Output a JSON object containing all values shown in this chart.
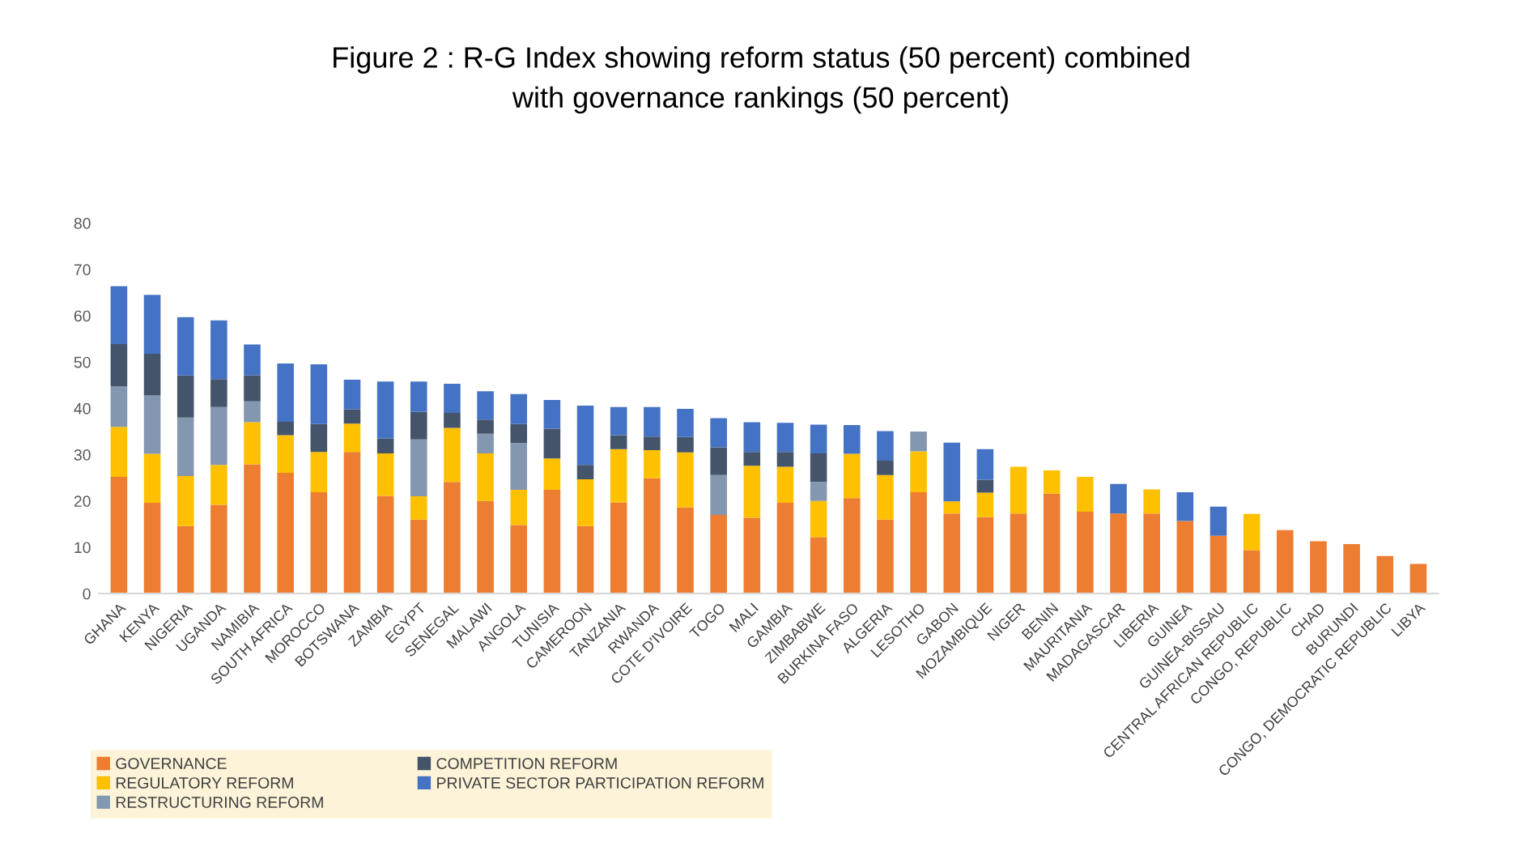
{
  "chart_data": {
    "type": "bar",
    "stacked": true,
    "title": "Figure 2 : R-G Index showing reform status (50 percent) combined\nwith governance rankings (50 percent)",
    "categories": [
      "GHANA",
      "KENYA",
      "NIGERIA",
      "UGANDA",
      "NAMIBIA",
      "SOUTH AFRICA",
      "MOROCCO",
      "BOTSWANA",
      "ZAMBIA",
      "EGYPT",
      "SENEGAL",
      "MALAWI",
      "ANGOLA",
      "TUNISIA",
      "CAMEROON",
      "TANZANIA",
      "RWANDA",
      "COTE D'IVOIRE",
      "TOGO",
      "MALI",
      "GAMBIA",
      "ZIMBABWE",
      "BURKINA FASO",
      "ALGERIA",
      "LESOTHO",
      "GABON",
      "MOZAMBIQUE",
      "NIGER",
      "BENIN",
      "MAURITANIA",
      "MADAGASCAR",
      "LIBERIA",
      "GUINEA",
      "GUINEA-BISSAU",
      "CENTRAL AFRICAN REPUBLIC",
      "CONGO, REPUBLIC",
      "CHAD",
      "BURUNDI",
      "CONGO, DEMOCRATIC REPUBLIC",
      "LIBYA"
    ],
    "series": [
      {
        "name": "GOVERNANCE",
        "color": "#ed7d31",
        "values": [
          25.2,
          19.6,
          14.6,
          19.2,
          27.9,
          26.1,
          21.9,
          30.6,
          21.1,
          16.0,
          24.1,
          20.0,
          14.8,
          22.4,
          14.6,
          19.7,
          24.9,
          18.6,
          17.0,
          16.4,
          19.6,
          12.2,
          20.6,
          16.0,
          21.9,
          17.3,
          16.5,
          17.3,
          21.6,
          17.7,
          17.3,
          17.3,
          15.7,
          12.5,
          9.4,
          13.7,
          11.3,
          10.7,
          8.1,
          6.4
        ]
      },
      {
        "name": "REGULATORY REFORM",
        "color": "#ffc000",
        "values": [
          10.8,
          10.6,
          10.8,
          8.6,
          9.1,
          8.1,
          8.7,
          6.1,
          9.2,
          5.0,
          11.7,
          10.3,
          7.6,
          6.8,
          10.1,
          11.5,
          6.1,
          11.9,
          null,
          11.2,
          7.8,
          7.8,
          9.6,
          9.6,
          8.8,
          2.6,
          5.3,
          10.1,
          5.0,
          7.5,
          null,
          5.2,
          null,
          null,
          7.8,
          null,
          null,
          null,
          null,
          null
        ]
      },
      {
        "name": "RESTRUCTURING REFORM",
        "color": "#8497b0",
        "values": [
          8.8,
          12.6,
          12.6,
          12.5,
          4.5,
          null,
          null,
          null,
          null,
          12.3,
          null,
          4.2,
          10.1,
          null,
          null,
          null,
          null,
          null,
          8.6,
          null,
          null,
          4.1,
          null,
          null,
          4.3,
          null,
          null,
          null,
          null,
          null,
          null,
          null,
          null,
          null,
          null,
          null,
          null,
          null,
          null,
          null
        ]
      },
      {
        "name": "COMPETITION REFORM",
        "color": "#44546a",
        "values": [
          9.1,
          9.0,
          9.1,
          6.0,
          5.6,
          2.9,
          6.0,
          3.1,
          3.2,
          6.0,
          3.2,
          3.1,
          4.1,
          6.4,
          3.1,
          3.0,
          2.9,
          3.3,
          6.0,
          3.0,
          3.2,
          6.2,
          null,
          3.1,
          null,
          null,
          2.8,
          null,
          null,
          null,
          null,
          null,
          null,
          null,
          null,
          null,
          null,
          null,
          null,
          null
        ]
      },
      {
        "name": "PRIVATE SECTOR PARTICIPATION REFORM",
        "color": "#4472c4",
        "values": [
          12.5,
          12.7,
          12.6,
          12.7,
          6.7,
          12.6,
          12.9,
          6.4,
          12.3,
          6.5,
          6.3,
          6.1,
          6.5,
          6.2,
          12.8,
          6.1,
          6.4,
          6.1,
          6.3,
          6.4,
          6.3,
          6.2,
          6.2,
          6.4,
          null,
          12.7,
          6.6,
          null,
          null,
          null,
          6.4,
          null,
          6.2,
          6.3,
          null,
          null,
          null,
          null,
          null,
          null
        ]
      }
    ],
    "ylim": [
      0,
      80
    ],
    "yticks": [
      0,
      10,
      20,
      30,
      40,
      50,
      60,
      70,
      80
    ],
    "grid": false,
    "legend": "bottom left"
  }
}
